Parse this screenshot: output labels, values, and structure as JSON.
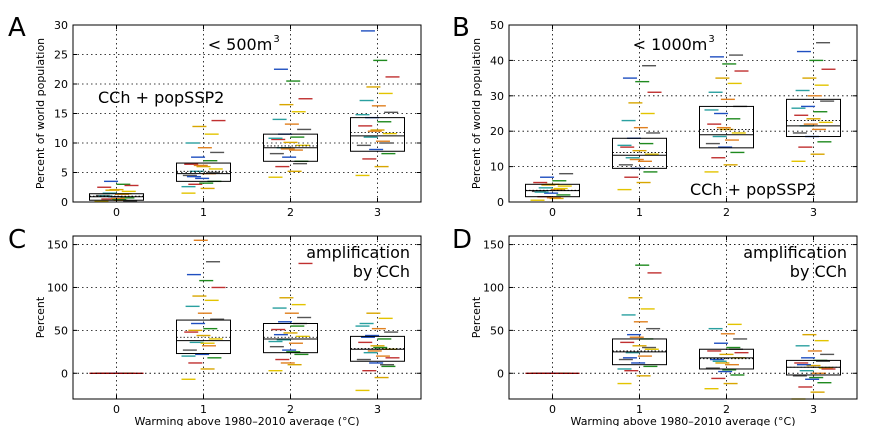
{
  "chart_data": [
    {
      "panel": "A",
      "type": "box",
      "annotation": "< 500m",
      "annotation_sup": "3",
      "annotation2": "CCh + popSSP2",
      "ylabel": "Percent of world population",
      "xlabel": "",
      "xticks": [
        "0",
        "1",
        "2",
        "3"
      ],
      "yticks": [
        "0",
        "5",
        "10",
        "15",
        "20",
        "25",
        "30"
      ],
      "ylim": [
        0,
        30
      ],
      "grid": true,
      "boxes": [
        {
          "x": 0,
          "q1": 0.3,
          "median": 0.9,
          "q3": 1.4,
          "mean": 1.0
        },
        {
          "x": 1,
          "q1": 3.5,
          "median": 4.8,
          "q3": 6.6,
          "mean": 5.2
        },
        {
          "x": 2,
          "q1": 6.9,
          "median": 9.2,
          "q3": 11.5,
          "mean": 9.5
        },
        {
          "x": 3,
          "q1": 8.6,
          "median": 11.2,
          "q3": 14.3,
          "mean": 11.8
        }
      ],
      "members": [
        [
          0.1,
          0.3,
          0.5,
          0.7,
          0.9,
          1.1,
          1.3,
          1.5,
          1.8,
          2.1,
          2.5,
          3.0,
          3.5,
          0.2,
          0.6,
          1.0,
          1.4,
          2.0,
          2.8,
          0.4
        ],
        [
          1.5,
          2.3,
          3.0,
          3.5,
          4.0,
          4.5,
          4.8,
          5.2,
          5.6,
          6.0,
          6.4,
          7.0,
          7.6,
          8.4,
          9.2,
          10.0,
          11.5,
          12.8,
          13.8,
          3.2,
          4.3,
          5.0,
          6.2,
          2.6
        ],
        [
          4.2,
          5.2,
          6.0,
          6.9,
          7.6,
          8.2,
          8.8,
          9.2,
          9.6,
          10.1,
          10.6,
          11.0,
          11.5,
          12.3,
          13.2,
          14.0,
          15.3,
          16.5,
          17.5,
          20.5,
          22.5,
          6.5,
          9.0,
          10.8
        ],
        [
          4.5,
          6.0,
          7.3,
          8.2,
          8.9,
          9.6,
          10.3,
          11.0,
          11.6,
          12.2,
          12.9,
          13.6,
          14.3,
          15.2,
          16.3,
          17.2,
          18.4,
          19.5,
          21.2,
          24.0,
          29.0,
          10.0,
          12.0,
          14.8
        ]
      ]
    },
    {
      "panel": "B",
      "type": "box",
      "annotation": "< 1000m",
      "annotation_sup": "3",
      "annotation2": "CCh + popSSP2",
      "ylabel": "Percent of world population",
      "xlabel": "",
      "xticks": [
        "0",
        "1",
        "2",
        "3"
      ],
      "yticks": [
        "0",
        "10",
        "20",
        "30",
        "40",
        "50"
      ],
      "ylim": [
        0,
        50
      ],
      "grid": true,
      "boxes": [
        {
          "x": 0,
          "q1": 1.5,
          "median": 3.2,
          "q3": 5.0,
          "mean": 3.3
        },
        {
          "x": 1,
          "q1": 9.5,
          "median": 13.2,
          "q3": 18.0,
          "mean": 14.0
        },
        {
          "x": 2,
          "q1": 15.3,
          "median": 19.0,
          "q3": 27.0,
          "mean": 20.5
        },
        {
          "x": 3,
          "q1": 18.5,
          "median": 21.5,
          "q3": 29.0,
          "mean": 23.0
        }
      ],
      "members": [
        [
          0.5,
          1.0,
          1.5,
          2.0,
          2.5,
          3.0,
          3.5,
          4.0,
          4.5,
          5.0,
          5.5,
          6.0,
          7.0,
          8.0,
          1.2,
          2.8,
          3.8,
          4.8
        ],
        [
          3.5,
          5.5,
          7.0,
          8.5,
          9.5,
          10.5,
          11.5,
          12.5,
          13.5,
          14.5,
          15.5,
          16.5,
          18.0,
          19.5,
          21.0,
          23.0,
          25.0,
          28.0,
          31.0,
          34.0,
          35.0,
          38.5,
          12.0,
          16.0
        ],
        [
          8.5,
          10.5,
          12.5,
          14.0,
          15.5,
          16.5,
          17.5,
          18.5,
          19.5,
          20.5,
          22.0,
          23.5,
          25.0,
          27.0,
          29.0,
          31.0,
          33.5,
          35.0,
          37.0,
          39.0,
          41.0,
          41.5,
          21.0,
          26.0
        ],
        [
          11.5,
          13.5,
          15.5,
          17.0,
          18.5,
          19.5,
          20.5,
          21.5,
          22.5,
          23.5,
          24.5,
          25.5,
          27.0,
          28.5,
          30.0,
          31.5,
          33.0,
          35.0,
          37.5,
          40.0,
          42.5,
          45.0,
          22.0,
          26.5
        ]
      ]
    },
    {
      "panel": "C",
      "type": "box",
      "annotation": "amplification",
      "annotation2": "by CCh",
      "ylabel": "Percent",
      "xlabel": "Warming above 1980–2010 average (°C)",
      "xticks": [
        "0",
        "1",
        "2",
        "3"
      ],
      "yticks": [
        "0",
        "50",
        "100",
        "150"
      ],
      "ylim": [
        -30,
        160
      ],
      "grid": true,
      "boxes": [
        {
          "x": 0,
          "q1": 0,
          "median": 0,
          "q3": 0,
          "mean": 0
        },
        {
          "x": 1,
          "q1": 23,
          "median": 38,
          "q3": 62,
          "mean": 42
        },
        {
          "x": 2,
          "q1": 24,
          "median": 40,
          "q3": 58,
          "mean": 42
        },
        {
          "x": 3,
          "q1": 14,
          "median": 28,
          "q3": 43,
          "mean": 29
        }
      ],
      "members": [
        [
          0,
          0,
          0,
          0,
          0,
          0
        ],
        [
          -7,
          5,
          12,
          18,
          22,
          27,
          32,
          36,
          40,
          44,
          48,
          52,
          58,
          63,
          70,
          78,
          85,
          90,
          100,
          108,
          115,
          130,
          155,
          20,
          35,
          50
        ],
        [
          3,
          10,
          16,
          22,
          27,
          31,
          35,
          39,
          43,
          47,
          51,
          55,
          60,
          65,
          70,
          76,
          80,
          88,
          128,
          25,
          45,
          58,
          12,
          37
        ],
        [
          -20,
          -5,
          3,
          8,
          12,
          16,
          20,
          24,
          28,
          32,
          36,
          40,
          44,
          48,
          52,
          58,
          64,
          70,
          18,
          30,
          42,
          10,
          26,
          55
        ]
      ]
    },
    {
      "panel": "D",
      "type": "box",
      "annotation": "amplification",
      "annotation2": "by CCh",
      "ylabel": "Percent",
      "xlabel": "Warming above 1980–2010 average (°C)",
      "xticks": [
        "0",
        "1",
        "2",
        "3"
      ],
      "yticks": [
        "0",
        "50",
        "100",
        "150"
      ],
      "ylim": [
        -30,
        160
      ],
      "grid": true,
      "boxes": [
        {
          "x": 0,
          "q1": 0,
          "median": 0,
          "q3": 0,
          "mean": 0
        },
        {
          "x": 1,
          "q1": 10,
          "median": 25,
          "q3": 40,
          "mean": 26
        },
        {
          "x": 2,
          "q1": 5,
          "median": 18,
          "q3": 28,
          "mean": 17
        },
        {
          "x": 3,
          "q1": -2,
          "median": 7,
          "q3": 15,
          "mean": 7
        }
      ],
      "members": [
        [
          0,
          0,
          0,
          0,
          0,
          0
        ],
        [
          -12,
          -3,
          3,
          8,
          12,
          16,
          20,
          24,
          28,
          32,
          36,
          40,
          45,
          52,
          60,
          68,
          75,
          88,
          117,
          126,
          18,
          30,
          42,
          5
        ],
        [
          -18,
          -12,
          -6,
          -2,
          2,
          6,
          10,
          14,
          18,
          22,
          26,
          30,
          35,
          40,
          46,
          52,
          57,
          12,
          24,
          4,
          16,
          28
        ],
        [
          -30,
          -22,
          -16,
          -11,
          -7,
          -3,
          0,
          3,
          6,
          9,
          12,
          15,
          18,
          22,
          26,
          32,
          38,
          45,
          5,
          -5,
          10,
          14
        ]
      ]
    }
  ],
  "colors": {
    "member_palette": [
      "#e3c400",
      "#d8a600",
      "#c03030",
      "#1f8a1f",
      "#1f4fc0",
      "#555555",
      "#e08020",
      "#2aa0a0"
    ],
    "box": "#000000",
    "grid": "#000000"
  }
}
